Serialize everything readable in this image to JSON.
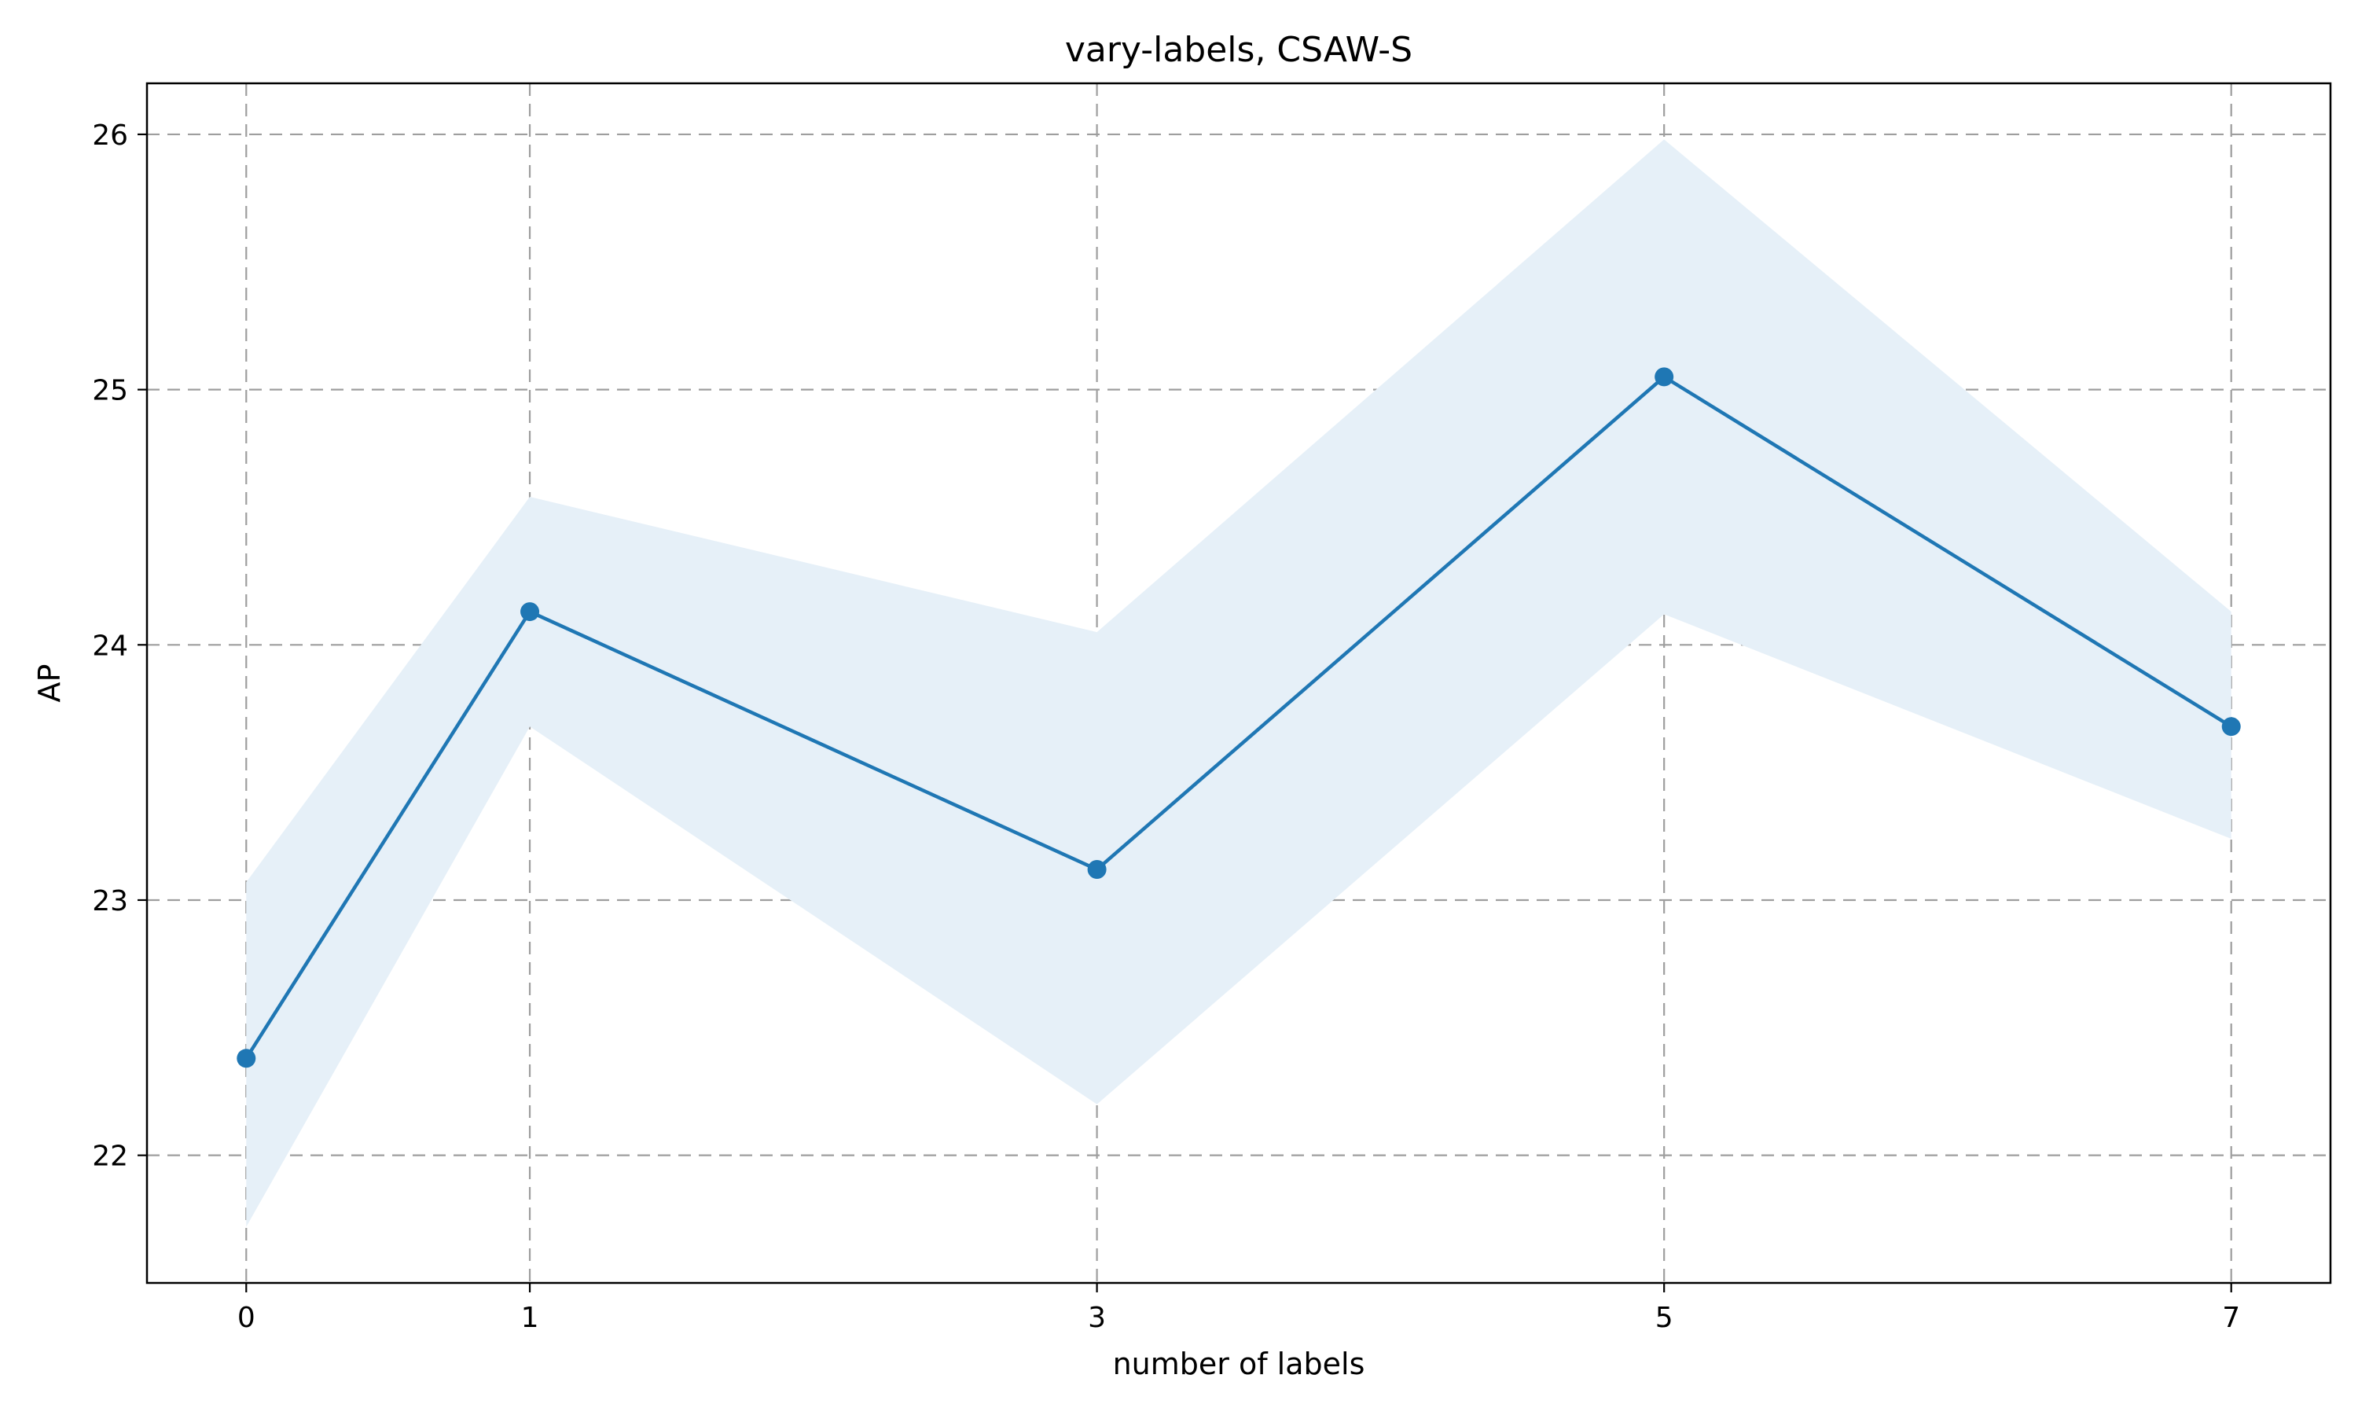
{
  "chart_data": {
    "type": "line",
    "title": "vary-labels, CSAW-S",
    "xlabel": "number of labels",
    "ylabel": "AP",
    "x": [
      0,
      1,
      3,
      5,
      7
    ],
    "xticks": [
      "0",
      "1",
      "3",
      "5",
      "7"
    ],
    "yticks": [
      "22",
      "23",
      "24",
      "25",
      "26"
    ],
    "xlim": [
      -0.35,
      7.35
    ],
    "ylim": [
      21.5,
      26.2
    ],
    "grid": true,
    "series": [
      {
        "values": [
          22.38,
          24.13,
          23.12,
          25.05,
          23.68
        ],
        "lower": [
          21.72,
          23.68,
          22.2,
          24.12,
          23.24
        ],
        "upper": [
          23.07,
          24.58,
          24.05,
          25.98,
          24.13
        ],
        "color": "#1f77b4",
        "band_color": "#e6f0f8"
      }
    ]
  }
}
